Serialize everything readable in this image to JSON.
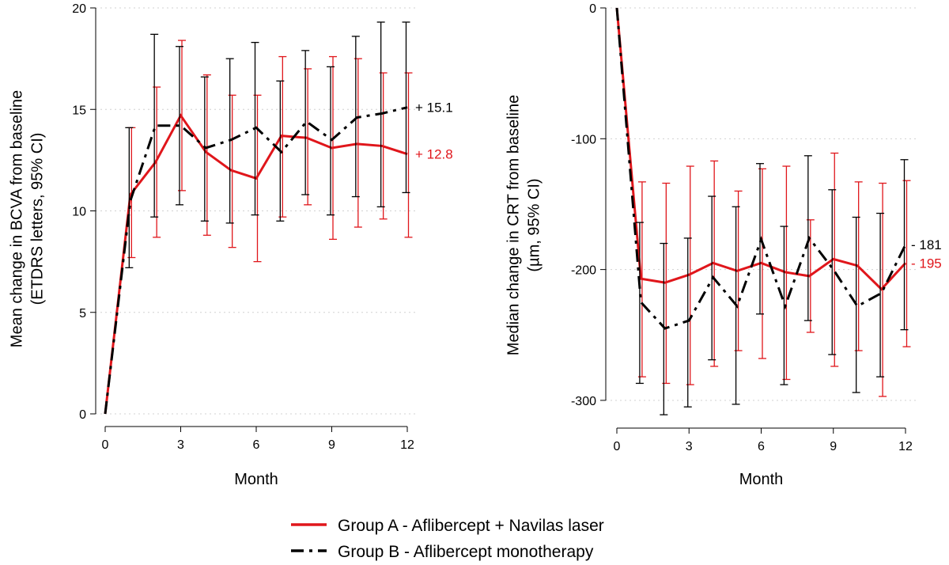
{
  "legend": {
    "items": [
      {
        "label": "Group A - Aflibercept + Navilas laser",
        "color": "#e0161b",
        "style": "solid"
      },
      {
        "label": "Group B - Aflibercept monotherapy",
        "color": "#000000",
        "style": "dashed"
      }
    ]
  },
  "chart_data": [
    {
      "type": "line",
      "title": "",
      "xlabel": "Month",
      "ylabel_lines": [
        "Mean change in BCVA from baseline",
        "(ETDRS letters, 95% CI)"
      ],
      "xlim": [
        0,
        12
      ],
      "ylim": [
        0,
        20
      ],
      "xticks": [
        0,
        3,
        6,
        9,
        12
      ],
      "yticks": [
        0,
        5,
        10,
        15,
        20
      ],
      "grid": "horizontal-dotted",
      "x": [
        0,
        1,
        2,
        3,
        4,
        5,
        6,
        7,
        8,
        9,
        10,
        11,
        12
      ],
      "series": [
        {
          "name": "Group A - Aflibercept + Navilas laser",
          "color": "#e0161b",
          "dashed": false,
          "values": [
            0,
            10.8,
            12.4,
            14.7,
            12.9,
            12.0,
            11.6,
            13.7,
            13.6,
            13.1,
            13.3,
            13.2,
            12.8
          ],
          "ci_low": [
            0,
            7.7,
            8.7,
            11.0,
            8.8,
            8.2,
            7.5,
            9.7,
            10.3,
            8.6,
            9.2,
            9.6,
            8.7
          ],
          "ci_high": [
            0,
            14.1,
            16.1,
            18.4,
            16.7,
            15.7,
            15.7,
            17.6,
            17.0,
            17.6,
            17.5,
            16.8,
            16.8
          ],
          "end_label": "+ 12.8"
        },
        {
          "name": "Group B - Aflibercept monotherapy",
          "color": "#000000",
          "dashed": true,
          "values": [
            0,
            10.5,
            14.2,
            14.2,
            13.1,
            13.5,
            14.1,
            12.9,
            14.4,
            13.5,
            14.6,
            14.8,
            15.1
          ],
          "ci_low": [
            0,
            7.2,
            9.7,
            10.3,
            9.5,
            9.4,
            9.8,
            9.5,
            10.8,
            9.8,
            10.7,
            10.2,
            10.9
          ],
          "ci_high": [
            0,
            14.1,
            18.7,
            18.1,
            16.6,
            17.5,
            18.3,
            16.4,
            17.9,
            17.1,
            18.6,
            19.3,
            19.3
          ],
          "end_label": "+ 15.1"
        }
      ]
    },
    {
      "type": "line",
      "title": "",
      "xlabel": "Month",
      "ylabel_lines": [
        "Median change in CRT from baseline",
        "(µm, 95% CI)"
      ],
      "xlim": [
        0,
        12
      ],
      "ylim": [
        -320,
        0
      ],
      "xticks": [
        0,
        3,
        6,
        9,
        12
      ],
      "yticks": [
        -300,
        -200,
        -100,
        0
      ],
      "grid": "horizontal-dotted",
      "x": [
        0,
        1,
        2,
        3,
        4,
        5,
        6,
        7,
        8,
        9,
        10,
        11,
        12
      ],
      "series": [
        {
          "name": "Group A - Aflibercept + Navilas laser",
          "color": "#e0161b",
          "dashed": false,
          "values": [
            0,
            -207,
            -210,
            -204,
            -195,
            -201,
            -195,
            -202,
            -205,
            -192,
            -197,
            -215,
            -195
          ],
          "ci_low": [
            0,
            -282,
            -287,
            -288,
            -274,
            -262,
            -268,
            -284,
            -248,
            -274,
            -262,
            -297,
            -259
          ],
          "ci_high": [
            0,
            -133,
            -134,
            -121,
            -117,
            -140,
            -123,
            -121,
            -162,
            -111,
            -133,
            -134,
            -132
          ],
          "end_label": "- 195"
        },
        {
          "name": "Group B - Aflibercept monotherapy",
          "color": "#000000",
          "dashed": true,
          "values": [
            0,
            -225,
            -245,
            -239,
            -206,
            -228,
            -177,
            -228,
            -176,
            -200,
            -228,
            -218,
            -181
          ],
          "ci_low": [
            0,
            -287,
            -311,
            -305,
            -269,
            -303,
            -234,
            -288,
            -239,
            -265,
            -294,
            -282,
            -246
          ],
          "ci_high": [
            0,
            -164,
            -180,
            -176,
            -144,
            -152,
            -119,
            -167,
            -113,
            -139,
            -160,
            -157,
            -116
          ],
          "end_label": "- 181"
        }
      ]
    }
  ]
}
